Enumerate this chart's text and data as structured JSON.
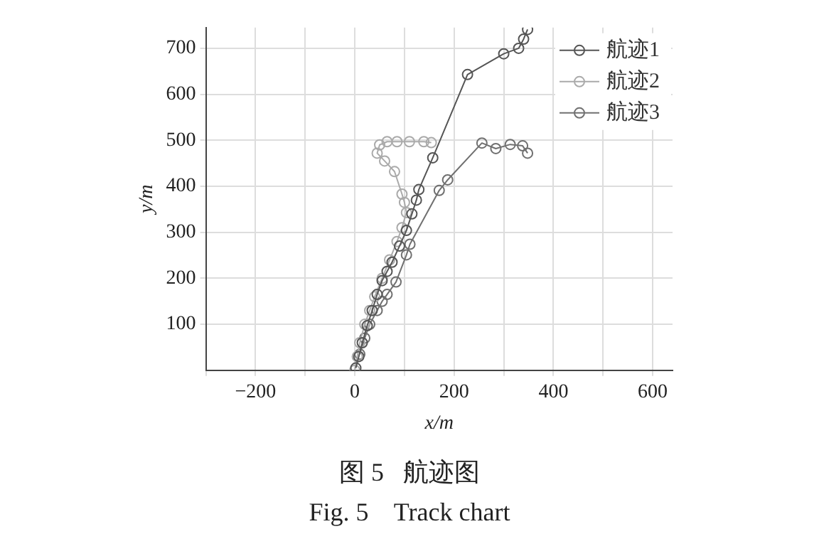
{
  "chart_data": {
    "type": "line",
    "xlabel": "x/m",
    "ylabel": "y/m",
    "xlim": [
      -300,
      640
    ],
    "ylim": [
      0,
      745
    ],
    "xticks": [
      {
        "value": -300,
        "label": null
      },
      -200,
      {
        "value": -100,
        "label": null
      },
      0,
      {
        "value": 100,
        "label": null
      },
      200,
      {
        "value": 300,
        "label": null
      },
      400,
      {
        "value": 500,
        "label": null
      },
      600
    ],
    "yticks": [
      100,
      200,
      300,
      400,
      500,
      600,
      700
    ],
    "grid": true,
    "legend": "top right",
    "marker": "circle",
    "line_style": "solid",
    "series": [
      {
        "name": "航迹1",
        "color": "#555555",
        "x": [
          2,
          8,
          15,
          25,
          35,
          45,
          55,
          65,
          75,
          90,
          104,
          115,
          124,
          129,
          157,
          227,
          300,
          330,
          340,
          348
        ],
        "values": [
          5,
          30,
          60,
          97,
          130,
          165,
          195,
          215,
          235,
          270,
          304,
          340,
          370,
          393,
          462,
          643,
          688,
          700,
          720,
          741
        ]
      },
      {
        "name": "航迹2",
        "color": "#aaaaaa",
        "x": [
          0,
          5,
          10,
          20,
          30,
          40,
          55,
          70,
          85,
          95,
          104,
          100,
          95,
          80,
          60,
          45,
          50,
          65,
          85,
          110,
          139,
          154
        ],
        "values": [
          0,
          30,
          60,
          100,
          130,
          160,
          200,
          240,
          280,
          310,
          343,
          365,
          383,
          432,
          455,
          472,
          490,
          497,
          497,
          497,
          497,
          495
        ]
      },
      {
        "name": "航迹3",
        "color": "#707070",
        "x": [
          10,
          20,
          30,
          45,
          55,
          65,
          83,
          104,
          111,
          170,
          187,
          256,
          284,
          313,
          338,
          348
        ],
        "values": [
          35,
          70,
          100,
          130,
          150,
          165,
          192,
          251,
          274,
          391,
          414,
          494,
          482,
          491,
          488,
          472
        ]
      }
    ],
    "annotations": [
      "图 5   航迹图",
      "Fig. 5    Track chart"
    ]
  }
}
